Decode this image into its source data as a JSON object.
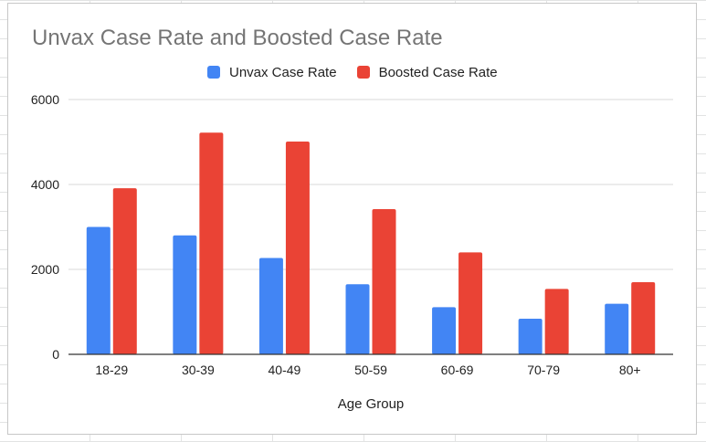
{
  "chart_data": {
    "type": "bar",
    "title": "Unvax Case Rate and Boosted Case Rate",
    "xlabel": "Age Group",
    "ylabel": "",
    "categories": [
      "18-29",
      "30-39",
      "40-49",
      "50-59",
      "60-69",
      "70-79",
      "80+"
    ],
    "series": [
      {
        "name": "Unvax Case Rate",
        "color": "#4285f4",
        "values": [
          3000,
          2800,
          2270,
          1650,
          1110,
          840,
          1190
        ]
      },
      {
        "name": "Boosted Case Rate",
        "color": "#ea4335",
        "values": [
          3910,
          5220,
          5010,
          3420,
          2400,
          1540,
          1700
        ]
      }
    ],
    "ylim": [
      0,
      6000
    ],
    "yticks": [
      0,
      2000,
      4000,
      6000
    ],
    "grid": true,
    "legend_position": "top"
  }
}
